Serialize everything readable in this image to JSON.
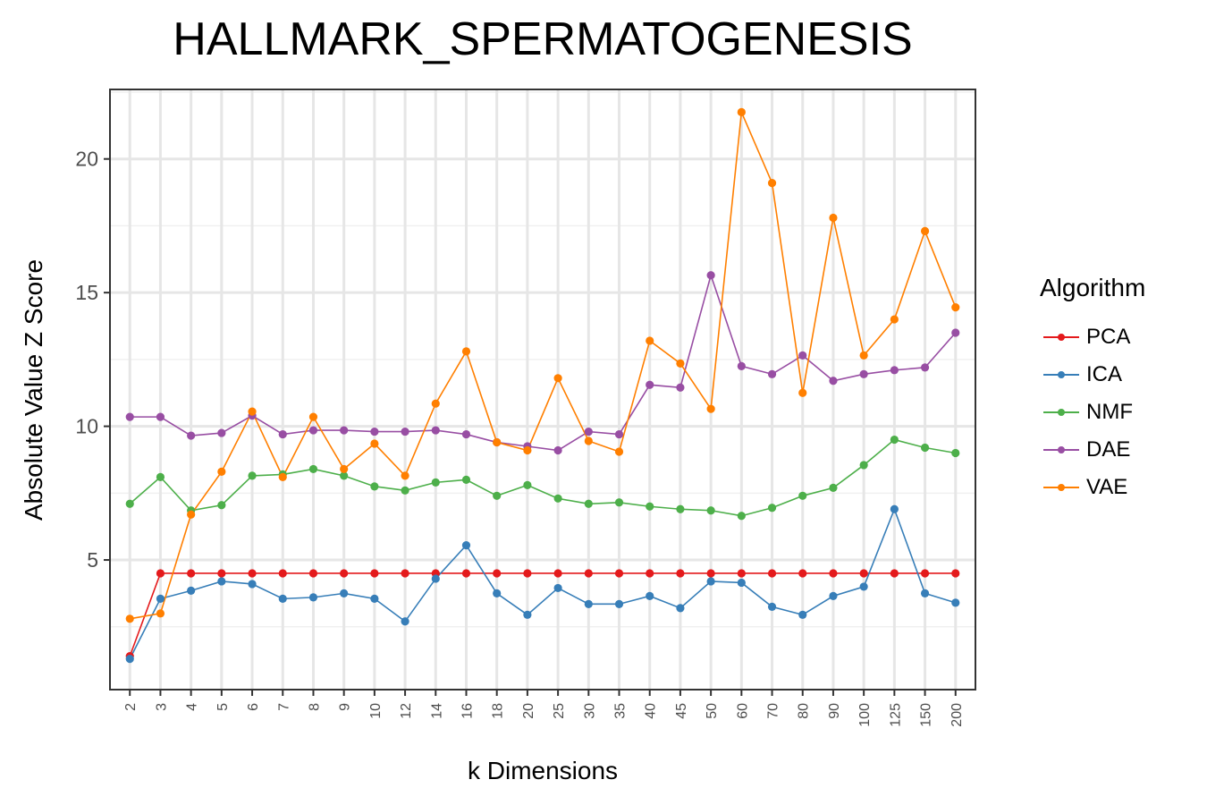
{
  "chart_data": {
    "type": "line",
    "title": "HALLMARK_SPERMATOGENESIS",
    "xlabel": "k Dimensions",
    "ylabel": "Absolute Value Z Score",
    "legend_title": "Algorithm",
    "legend_position": "right",
    "grid": true,
    "categories": [
      "2",
      "3",
      "4",
      "5",
      "6",
      "7",
      "8",
      "9",
      "10",
      "12",
      "14",
      "16",
      "18",
      "20",
      "25",
      "30",
      "35",
      "40",
      "45",
      "50",
      "60",
      "70",
      "80",
      "90",
      "100",
      "125",
      "150",
      "200"
    ],
    "ylim": [
      0.15,
      22.6
    ],
    "yticks": [
      5,
      10,
      15,
      20
    ],
    "series": [
      {
        "name": "PCA",
        "color": "#e41a1c",
        "values": [
          1.4,
          4.5,
          4.5,
          4.5,
          4.5,
          4.5,
          4.5,
          4.5,
          4.5,
          4.5,
          4.5,
          4.5,
          4.5,
          4.5,
          4.5,
          4.5,
          4.5,
          4.5,
          4.5,
          4.5,
          4.5,
          4.5,
          4.5,
          4.5,
          4.5,
          4.5,
          4.5,
          4.5
        ]
      },
      {
        "name": "ICA",
        "color": "#377eb8",
        "values": [
          1.3,
          3.55,
          3.85,
          4.2,
          4.1,
          3.55,
          3.6,
          3.75,
          3.55,
          2.7,
          4.3,
          5.55,
          3.75,
          2.95,
          3.95,
          3.35,
          3.35,
          3.65,
          3.2,
          4.2,
          4.15,
          3.25,
          2.95,
          3.65,
          4.0,
          6.9,
          3.75,
          3.4
        ]
      },
      {
        "name": "NMF",
        "color": "#4daf4a",
        "values": [
          7.1,
          8.1,
          6.85,
          7.05,
          8.15,
          8.2,
          8.4,
          8.15,
          7.75,
          7.6,
          7.9,
          8.0,
          7.4,
          7.8,
          7.3,
          7.1,
          7.15,
          7.0,
          6.9,
          6.85,
          6.65,
          6.95,
          7.4,
          7.7,
          8.55,
          9.5,
          9.2,
          9.0
        ]
      },
      {
        "name": "DAE",
        "color": "#984ea3",
        "values": [
          10.35,
          10.35,
          9.65,
          9.75,
          10.4,
          9.7,
          9.85,
          9.85,
          9.8,
          9.8,
          9.85,
          9.7,
          9.4,
          9.25,
          9.1,
          9.8,
          9.7,
          11.55,
          11.45,
          15.65,
          12.25,
          11.95,
          12.65,
          11.7,
          11.95,
          12.1,
          12.2,
          13.5
        ]
      },
      {
        "name": "VAE",
        "color": "#ff7f00",
        "values": [
          2.8,
          3.0,
          6.7,
          8.3,
          10.55,
          8.1,
          10.35,
          8.4,
          9.35,
          8.15,
          10.85,
          12.8,
          9.4,
          9.1,
          11.8,
          9.45,
          9.05,
          13.2,
          12.35,
          10.65,
          21.75,
          19.1,
          11.25,
          17.8,
          12.65,
          14.0,
          17.3,
          14.45
        ]
      }
    ]
  }
}
